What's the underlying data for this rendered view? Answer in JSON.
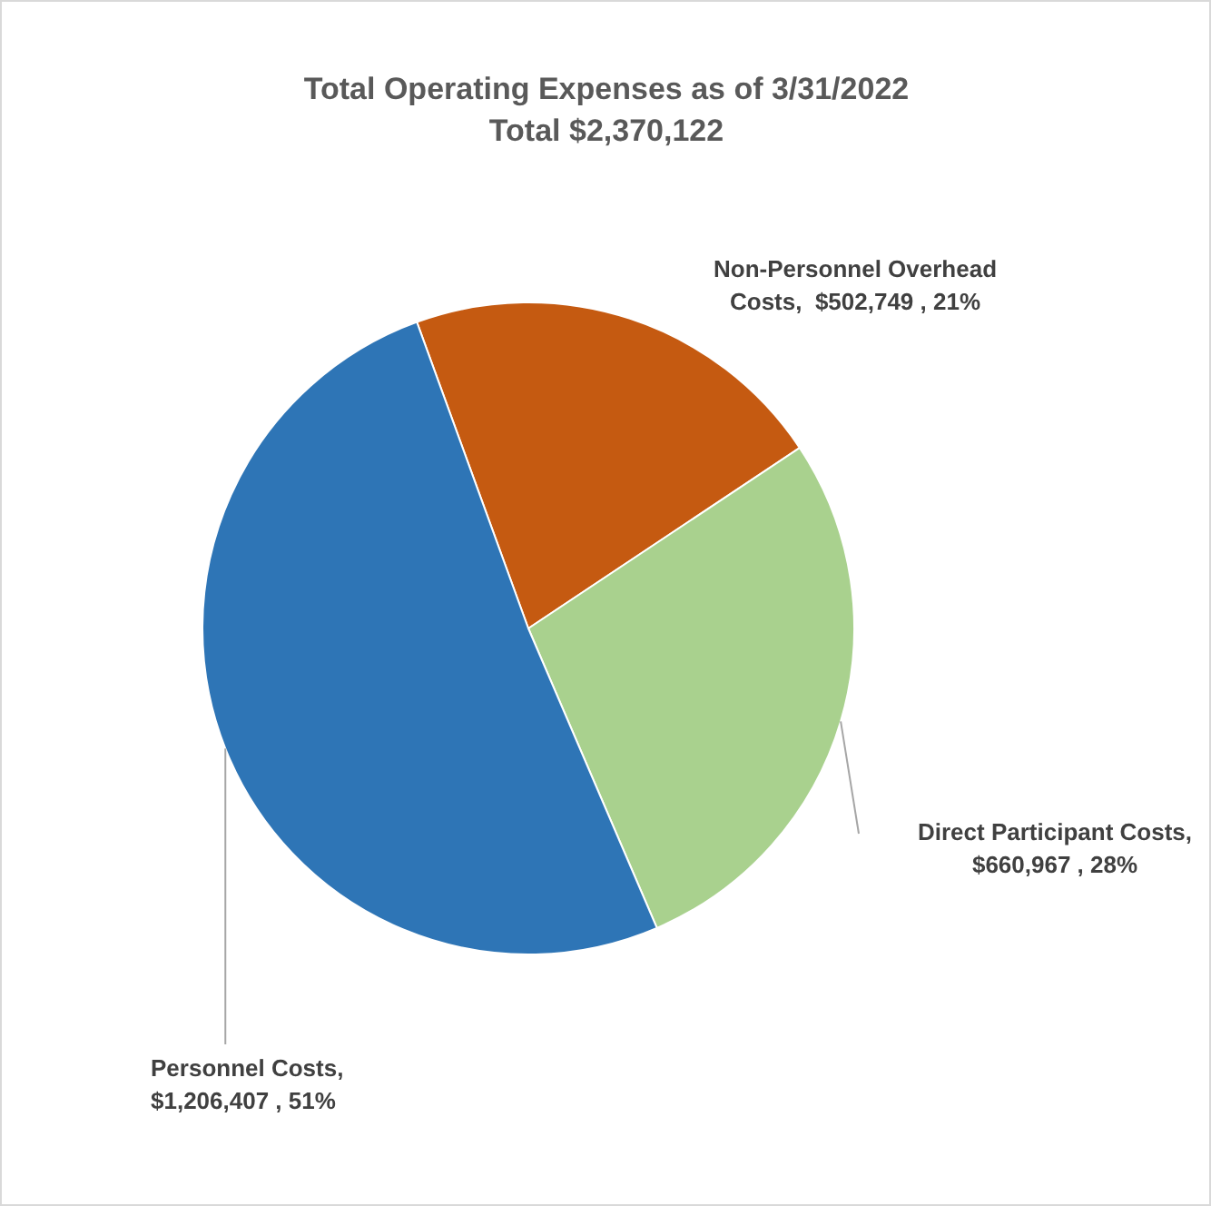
{
  "chart_data": {
    "type": "pie",
    "title": "Total Operating Expenses as of 3/31/2022",
    "subtitle": "Total $2,370,122",
    "categories": [
      "Non-Personnel Overhead Costs",
      "Direct Participant Costs",
      "Personnel Costs"
    ],
    "values": [
      502749,
      660967,
      1206407
    ],
    "colors": [
      "#c55a11",
      "#a9d18e",
      "#2e75b6"
    ],
    "value_labels": [
      ",  $502,749 , 21%",
      ", $660,967 , 28%",
      ", $1,206,407 , 51%"
    ],
    "legend": false
  }
}
